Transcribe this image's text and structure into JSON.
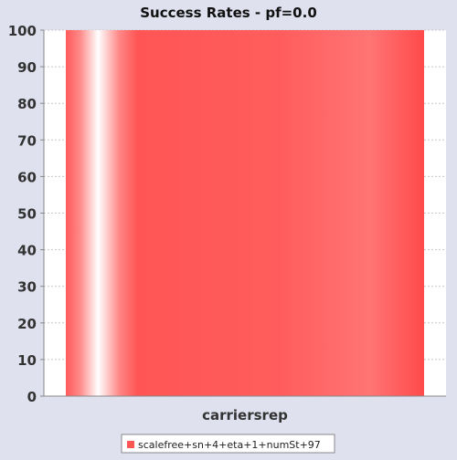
{
  "chart_data": {
    "type": "bar",
    "title": "Success Rates - pf=0.0",
    "categories": [
      "carriersrep"
    ],
    "series": [
      {
        "name": "scalefree+sn+4+eta+1+numSt+97",
        "values": [
          100
        ]
      }
    ],
    "ylim": [
      0,
      100
    ],
    "yticks": [
      0,
      10,
      20,
      30,
      40,
      50,
      60,
      70,
      80,
      90,
      100
    ],
    "grid": true,
    "legend_position": "bottom",
    "colors": {
      "background": "#dfe1ef",
      "plot_background": "#ffffff",
      "bar": "#ff5555",
      "bar_highlight": "#ffffff",
      "grid": "#c8c8c8",
      "axis": "#888888",
      "text": "#333333"
    }
  }
}
